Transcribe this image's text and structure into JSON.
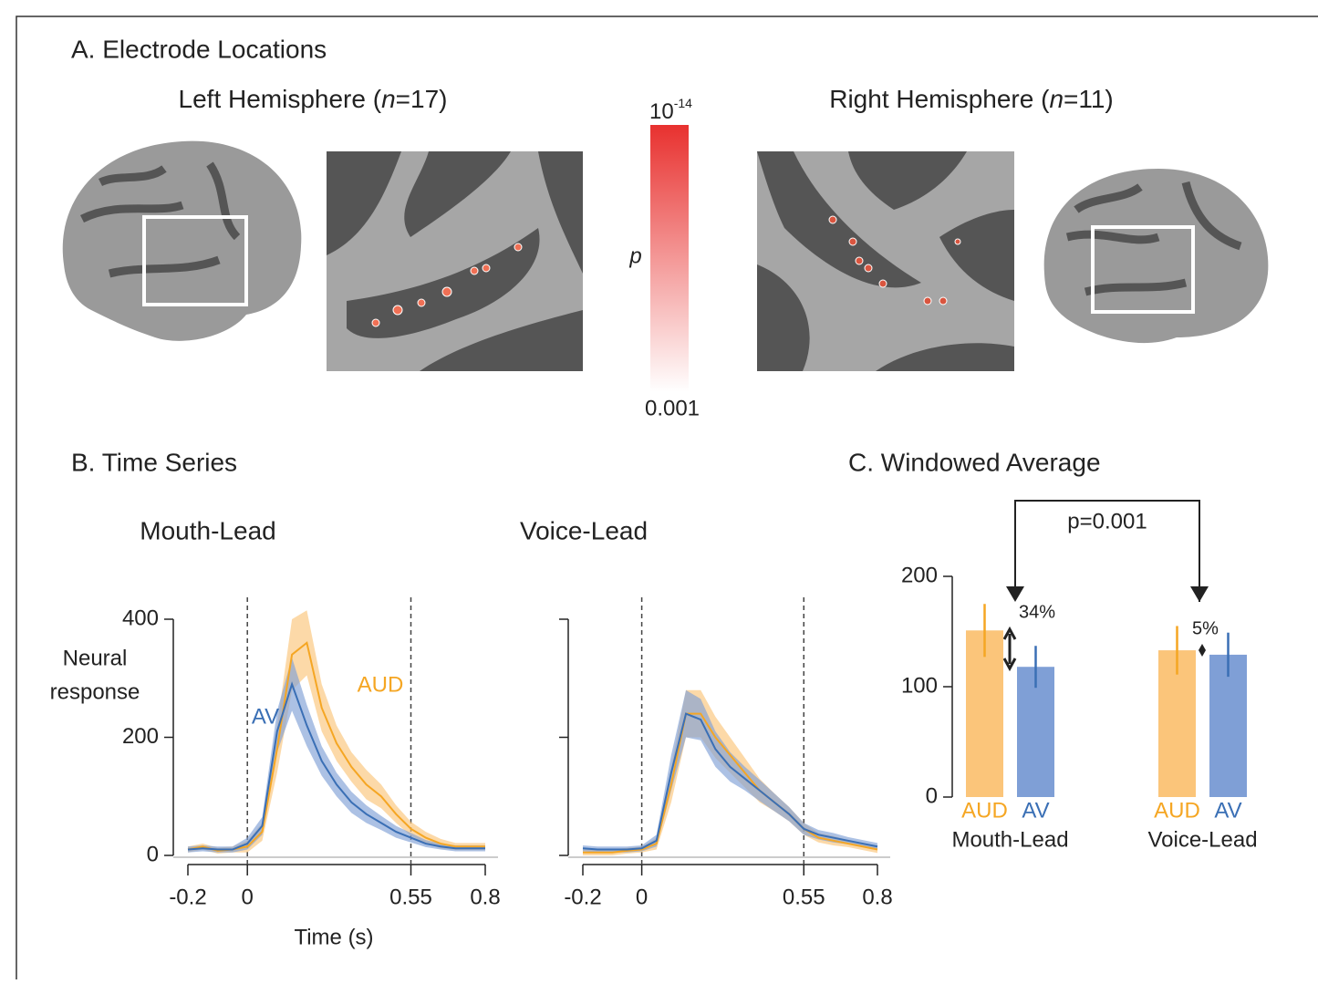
{
  "panel_a": {
    "title": "A. Electrode Locations",
    "left_title": [
      "Left Hemisphere (",
      "n",
      "=17)"
    ],
    "right_title": [
      "Right Hemisphere (",
      "n",
      "=11)"
    ],
    "colorbar": {
      "top": "10",
      "top_exp": "-14",
      "label": "p",
      "bottom": "0.001"
    }
  },
  "chart_data": [
    {
      "type": "line",
      "panel_title": "B. Time Series",
      "title": "Mouth-Lead",
      "ylabel": [
        "Neural",
        "response"
      ],
      "xlabel": "Time (s)",
      "x": [
        -0.2,
        -0.15,
        -0.1,
        -0.05,
        0,
        0.05,
        0.1,
        0.15,
        0.2,
        0.25,
        0.3,
        0.35,
        0.4,
        0.45,
        0.5,
        0.55,
        0.6,
        0.65,
        0.7,
        0.75,
        0.8
      ],
      "series": [
        {
          "name": "AUD",
          "color": "#f5a623",
          "band_color": "#fbc57a",
          "values": [
            10,
            15,
            8,
            10,
            15,
            40,
            180,
            340,
            360,
            250,
            190,
            150,
            120,
            100,
            70,
            45,
            30,
            20,
            15,
            15,
            15
          ],
          "err": [
            5,
            5,
            5,
            5,
            10,
            15,
            40,
            60,
            55,
            40,
            30,
            25,
            25,
            20,
            15,
            12,
            10,
            8,
            6,
            6,
            6
          ]
        },
        {
          "name": "AV",
          "color": "#3a6fb5",
          "band_color": "#7f9fd6",
          "values": [
            10,
            12,
            10,
            10,
            20,
            50,
            210,
            290,
            220,
            160,
            120,
            90,
            70,
            55,
            40,
            30,
            20,
            15,
            12,
            12,
            12
          ],
          "err": [
            5,
            5,
            5,
            5,
            10,
            15,
            35,
            45,
            35,
            25,
            20,
            18,
            15,
            12,
            10,
            8,
            6,
            5,
            5,
            5,
            5
          ]
        }
      ],
      "xlim": [
        -0.2,
        0.8
      ],
      "xticks": [
        -0.2,
        0,
        0.55,
        0.8
      ],
      "ylim": [
        0,
        400
      ],
      "yticks": [
        0,
        200,
        400
      ],
      "ytick_labels": true,
      "vlines": [
        0,
        0.55
      ]
    },
    {
      "type": "line",
      "title": "Voice-Lead",
      "x": [
        -0.2,
        -0.15,
        -0.1,
        -0.05,
        0,
        0.05,
        0.1,
        0.15,
        0.2,
        0.25,
        0.3,
        0.35,
        0.4,
        0.45,
        0.5,
        0.55,
        0.6,
        0.65,
        0.7,
        0.75,
        0.8
      ],
      "series": [
        {
          "color": "#f5a623",
          "band_color": "#fbc57a",
          "values": [
            5,
            5,
            5,
            8,
            10,
            20,
            120,
            240,
            240,
            200,
            170,
            140,
            110,
            90,
            70,
            45,
            30,
            25,
            20,
            15,
            10
          ],
          "err": [
            5,
            5,
            5,
            5,
            5,
            10,
            30,
            40,
            40,
            35,
            30,
            25,
            20,
            15,
            12,
            10,
            8,
            8,
            6,
            6,
            6
          ]
        },
        {
          "color": "#3a6fb5",
          "band_color": "#7f9fd6",
          "values": [
            12,
            10,
            10,
            10,
            12,
            25,
            140,
            240,
            230,
            180,
            150,
            130,
            110,
            90,
            70,
            45,
            35,
            30,
            25,
            20,
            15
          ],
          "err": [
            5,
            5,
            5,
            5,
            5,
            10,
            30,
            40,
            35,
            30,
            25,
            20,
            18,
            15,
            12,
            10,
            8,
            8,
            6,
            6,
            6
          ]
        }
      ],
      "xlim": [
        -0.2,
        0.8
      ],
      "xticks": [
        -0.2,
        0,
        0.55,
        0.8
      ],
      "ylim": [
        0,
        400
      ],
      "yticks": [
        0,
        200,
        400
      ],
      "ytick_labels": false,
      "vlines": [
        0,
        0.55
      ]
    },
    {
      "type": "bar",
      "title": "C. Windowed Average",
      "categories": [
        "Mouth-Lead",
        "Voice-Lead"
      ],
      "series": [
        {
          "name": "AUD",
          "color": "#fbc57a",
          "err_color": "#f5a623",
          "values": [
            151,
            133
          ],
          "err": [
            24,
            22
          ]
        },
        {
          "name": "AV",
          "color": "#7f9fd6",
          "err_color": "#3a6fb5",
          "values": [
            118,
            129
          ],
          "err": [
            19,
            20
          ]
        }
      ],
      "ylim": [
        0,
        200
      ],
      "yticks": [
        0,
        100,
        200
      ],
      "annotations": [
        "34%",
        "5%"
      ],
      "comparison": "p=0.001"
    }
  ]
}
